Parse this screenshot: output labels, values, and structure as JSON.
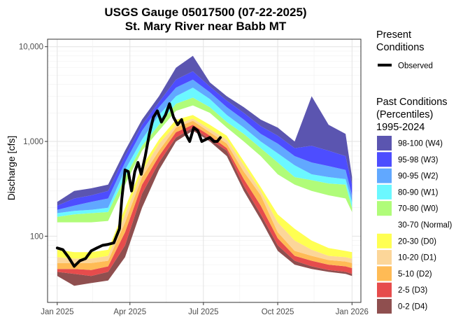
{
  "chart_data": {
    "type": "area",
    "title": "USGS Gauge 05017500 (07-22-2025)",
    "subtitle": "St. Mary River near Babb MT",
    "ylabel": "Discharge [cfs]",
    "xlabel": "",
    "y_scale": "log",
    "ylim": [
      20,
      12000
    ],
    "xlim": [
      "2024-12-20",
      "2026-01-12"
    ],
    "y_ticks": [
      {
        "value": 100,
        "label": "100"
      },
      {
        "value": 1000,
        "label": "1,000"
      },
      {
        "value": 10000,
        "label": "10,000"
      }
    ],
    "x_ticks": [
      {
        "date": "2025-01-01",
        "label": "Jan 2025"
      },
      {
        "date": "2025-04-01",
        "label": "Apr 2025"
      },
      {
        "date": "2025-07-01",
        "label": "Jul 2025"
      },
      {
        "date": "2025-10-01",
        "label": "Oct 2025"
      },
      {
        "date": "2026-01-01",
        "label": "Jan 2026"
      }
    ],
    "grid": true,
    "legend_position": "right",
    "percentile_dates": [
      "2025-01-01",
      "2025-01-22",
      "2025-02-12",
      "2025-03-05",
      "2025-03-26",
      "2025-04-16",
      "2025-05-07",
      "2025-05-28",
      "2025-06-18",
      "2025-07-09",
      "2025-07-30",
      "2025-08-20",
      "2025-09-10",
      "2025-10-01",
      "2025-10-22",
      "2025-11-12",
      "2025-12-03",
      "2025-12-24",
      "2026-01-01"
    ],
    "percentile_values": {
      "p0": [
        38,
        30,
        32,
        34,
        60,
        200,
        500,
        1000,
        1300,
        1000,
        700,
        300,
        150,
        70,
        50,
        45,
        42,
        40,
        38
      ],
      "p2": [
        42,
        40,
        38,
        42,
        80,
        280,
        600,
        1100,
        1400,
        1050,
        800,
        340,
        170,
        80,
        55,
        48,
        44,
        42,
        40
      ],
      "p5": [
        45,
        45,
        44,
        48,
        110,
        350,
        700,
        1250,
        1500,
        1150,
        850,
        400,
        210,
        95,
        62,
        55,
        50,
        48,
        46
      ],
      "p10": [
        52,
        52,
        52,
        55,
        140,
        420,
        800,
        1400,
        1650,
        1250,
        950,
        480,
        270,
        110,
        70,
        62,
        56,
        54,
        52
      ],
      "p20": [
        60,
        58,
        58,
        62,
        170,
        480,
        950,
        1500,
        1750,
        1350,
        1050,
        560,
        300,
        140,
        90,
        72,
        62,
        60,
        58
      ],
      "p30": [
        72,
        68,
        68,
        72,
        200,
        550,
        1050,
        1700,
        1900,
        1500,
        1150,
        620,
        330,
        170,
        120,
        90,
        75,
        70,
        68
      ],
      "p70": [
        140,
        140,
        140,
        145,
        350,
        800,
        1300,
        2100,
        2400,
        2000,
        1400,
        1000,
        700,
        450,
        350,
        300,
        270,
        250,
        180
      ],
      "p80": [
        160,
        170,
        175,
        180,
        420,
        900,
        1500,
        2500,
        2900,
        2300,
        1600,
        1200,
        850,
        600,
        420,
        390,
        360,
        350,
        200
      ],
      "p90": [
        175,
        185,
        190,
        200,
        500,
        1050,
        1900,
        3000,
        3700,
        2800,
        1900,
        1400,
        1000,
        750,
        560,
        450,
        420,
        400,
        230
      ],
      "p95": [
        190,
        210,
        230,
        250,
        600,
        1300,
        2300,
        3700,
        4500,
        3300,
        2300,
        1700,
        1200,
        950,
        700,
        600,
        550,
        500,
        270
      ],
      "p98": [
        210,
        250,
        270,
        300,
        700,
        1500,
        2600,
        4500,
        5500,
        3800,
        2700,
        2000,
        1450,
        1150,
        850,
        900,
        800,
        700,
        350
      ],
      "p100": [
        230,
        300,
        320,
        350,
        800,
        1700,
        3000,
        6000,
        8000,
        4200,
        3000,
        2300,
        1700,
        1400,
        1000,
        3000,
        1500,
        1200,
        420
      ]
    },
    "series": [
      {
        "name": "Observed",
        "x": [
          "2025-01-01",
          "2025-01-08",
          "2025-01-15",
          "2025-01-22",
          "2025-01-29",
          "2025-02-05",
          "2025-02-12",
          "2025-02-19",
          "2025-02-26",
          "2025-03-05",
          "2025-03-12",
          "2025-03-19",
          "2025-03-22",
          "2025-03-26",
          "2025-03-30",
          "2025-04-03",
          "2025-04-07",
          "2025-04-11",
          "2025-04-15",
          "2025-04-20",
          "2025-04-25",
          "2025-04-30",
          "2025-05-05",
          "2025-05-10",
          "2025-05-15",
          "2025-05-20",
          "2025-05-25",
          "2025-05-30",
          "2025-06-04",
          "2025-06-09",
          "2025-06-14",
          "2025-06-19",
          "2025-06-24",
          "2025-06-29",
          "2025-07-04",
          "2025-07-09",
          "2025-07-14",
          "2025-07-18",
          "2025-07-22"
        ],
        "y": [
          75,
          72,
          60,
          48,
          55,
          58,
          70,
          75,
          80,
          82,
          85,
          120,
          250,
          500,
          480,
          300,
          480,
          600,
          450,
          700,
          1200,
          1800,
          2100,
          1600,
          1900,
          2500,
          1800,
          1500,
          1700,
          1200,
          1000,
          1400,
          1300,
          1000,
          1050,
          1100,
          1000,
          1000,
          1100
        ]
      }
    ],
    "legend": {
      "present_title": "Present\nConditions",
      "observed_label": "Observed",
      "past_title": "Past Conditions\n(Percentiles)\n1995-2024",
      "bands": [
        {
          "label": "98-100 (W4)",
          "color": "#5b55b0"
        },
        {
          "label": "95-98 (W3)",
          "color": "#4d4dff"
        },
        {
          "label": "90-95 (W2)",
          "color": "#61a8ff"
        },
        {
          "label": "80-90 (W1)",
          "color": "#6bf8ff"
        },
        {
          "label": "70-80 (W0)",
          "color": "#b0fc79"
        },
        {
          "label": "30-70 (Normal)",
          "color": "#ffffff"
        },
        {
          "label": "20-30 (D0)",
          "color": "#ffff52"
        },
        {
          "label": "10-20 (D1)",
          "color": "#fcd699"
        },
        {
          "label": "5-10 (D2)",
          "color": "#ffbb55"
        },
        {
          "label": "2-5 (D3)",
          "color": "#e64c4c"
        },
        {
          "label": "0-2 (D4)",
          "color": "#8f4f4f"
        }
      ]
    }
  }
}
